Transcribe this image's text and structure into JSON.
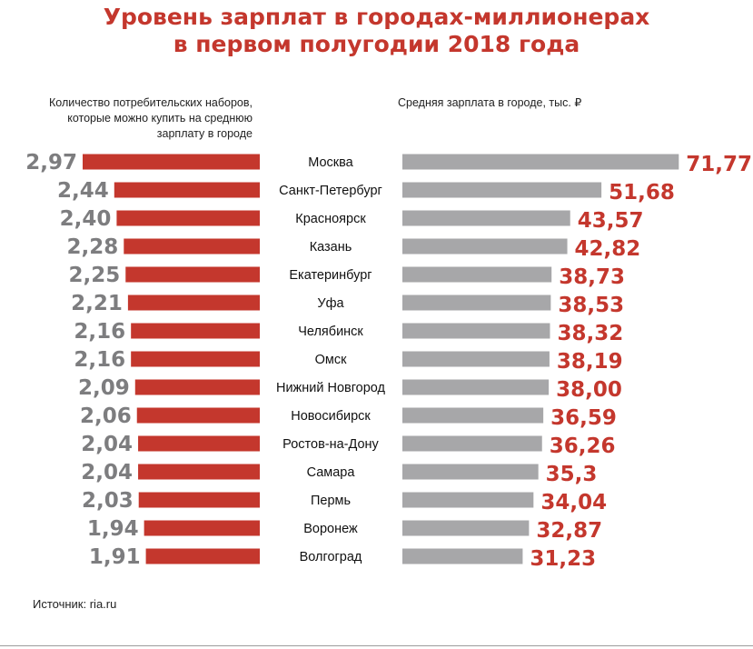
{
  "title_line1": "Уровень зарплат в городах-миллионерах",
  "title_line2": "в первом полугодии 2018 года",
  "left_caption_lines": [
    "Количество потребительских наборов,",
    "которые можно купить на среднюю",
    "зарплату в городе"
  ],
  "right_caption": "Средняя зарплата в городе, тыс. ₽",
  "source": "Источник: ria.ru",
  "colors": {
    "accent": "#c4372d",
    "grey_bar": "#a7a7a9",
    "left_value": "#7d7d7f",
    "right_value": "#c4372d"
  },
  "chart_data": {
    "type": "bar",
    "categories": [
      "Москва",
      "Санкт-Петербург",
      "Красноярск",
      "Казань",
      "Екатеринбург",
      "Уфа",
      "Челябинск",
      "Омск",
      "Нижний Новгород",
      "Новосибирск",
      "Ростов-на-Дону",
      "Самара",
      "Пермь",
      "Воронеж",
      "Волгоград"
    ],
    "series": [
      {
        "name": "Количество потребительских наборов, которые можно купить на среднюю зарплату в городе",
        "values": [
          2.97,
          2.44,
          2.4,
          2.28,
          2.25,
          2.21,
          2.16,
          2.16,
          2.09,
          2.06,
          2.04,
          2.04,
          2.03,
          1.94,
          1.91
        ],
        "labels": [
          "2,97",
          "2,44",
          "2,40",
          "2,28",
          "2,25",
          "2,21",
          "2,16",
          "2,16",
          "2,09",
          "2,06",
          "2,04",
          "2,04",
          "2,03",
          "1,94",
          "1,91"
        ],
        "color": "#c4372d"
      },
      {
        "name": "Средняя зарплата в городе, тыс. ₽",
        "values": [
          71.77,
          51.68,
          43.57,
          42.82,
          38.73,
          38.53,
          38.32,
          38.19,
          38.0,
          36.59,
          36.26,
          35.3,
          34.04,
          32.87,
          31.23
        ],
        "labels": [
          "71,77",
          "51,68",
          "43,57",
          "42,82",
          "38,73",
          "38,53",
          "38,32",
          "38,19",
          "38,00",
          "36,59",
          "36,26",
          "35,3",
          "34,04",
          "32,87",
          "31,23"
        ],
        "color": "#a7a7a9"
      }
    ],
    "grid": false,
    "legend": "none"
  }
}
